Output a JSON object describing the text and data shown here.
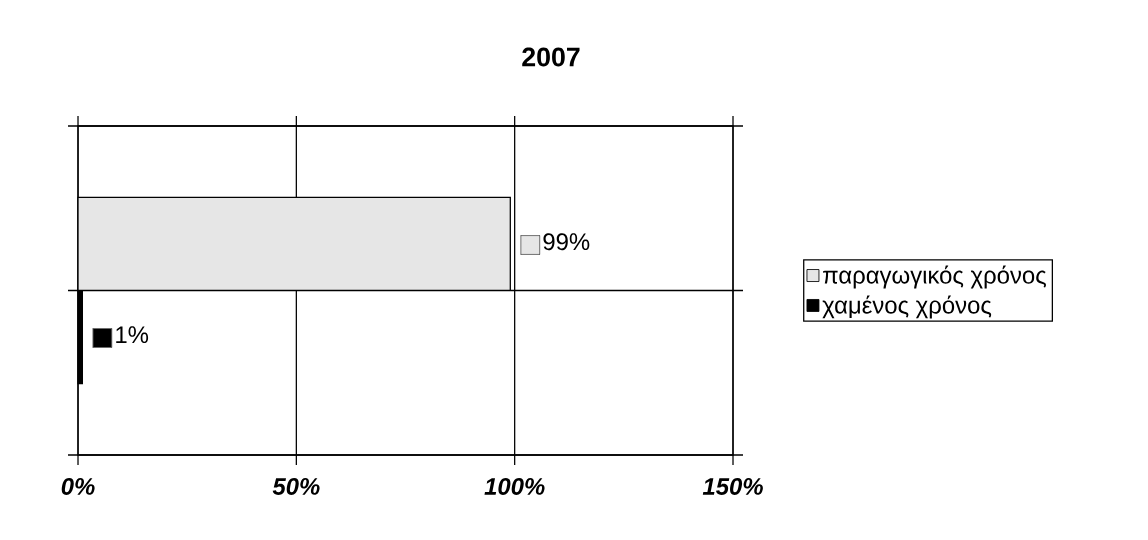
{
  "chart_data": {
    "type": "bar",
    "orientation": "horizontal",
    "title": "2007",
    "categories": [
      null
    ],
    "series": [
      {
        "name": "παραγωγικός χρόνος",
        "color": "#e6e6e6",
        "values": [
          99
        ],
        "value_labels": [
          "99%"
        ]
      },
      {
        "name": "χαμένος χρόνος",
        "color": "#000000",
        "values": [
          1
        ],
        "value_labels": [
          "1%"
        ]
      }
    ],
    "xlim": [
      0,
      150
    ],
    "xticks": [
      {
        "value": 0,
        "label": "0%"
      },
      {
        "value": 50,
        "label": "50%"
      },
      {
        "value": 100,
        "label": "100%"
      },
      {
        "value": 150,
        "label": "150%"
      }
    ],
    "grid": true,
    "legend": "right"
  }
}
